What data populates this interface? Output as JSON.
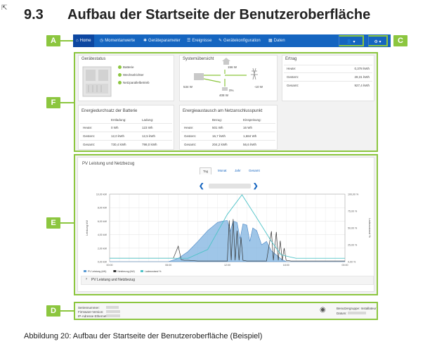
{
  "heading": {
    "number": "9.3",
    "title": "Aufbau der Startseite der Benutzeroberfläche"
  },
  "callouts": {
    "a": "A",
    "b": "B",
    "c": "C",
    "d": "D",
    "e": "E",
    "f": "F"
  },
  "navbar": {
    "items": [
      {
        "label": "Home",
        "icon": "home-icon"
      },
      {
        "label": "Momentanwerte",
        "icon": "clock-icon"
      },
      {
        "label": "Geräteparameter",
        "icon": "gear-icon"
      },
      {
        "label": "Ereignisse",
        "icon": "list-icon"
      },
      {
        "label": "Gerätekonfiguration",
        "icon": "wrench-icon"
      },
      {
        "label": "Daten",
        "icon": "table-icon"
      }
    ],
    "user_menu": "👤 ▾",
    "settings_menu": "⚙ ▾"
  },
  "geraetestatus": {
    "title": "Gerätestatus",
    "items": [
      "Batterie",
      "Wechselrichter",
      "Netzparallelbetrieb"
    ]
  },
  "systemuebersicht": {
    "title": "Systemübersicht",
    "values": {
      "top": "156 W",
      "left": "534 W",
      "right": "-10 W",
      "battery_pct": "0%",
      "bottom": "408 W"
    }
  },
  "ertrag": {
    "title": "Ertrag",
    "rows": [
      [
        "Heute:",
        "0,378 kWh"
      ],
      [
        "Gestern:",
        "28,31 kWh"
      ],
      [
        "Gesamt:",
        "927,4 kWh"
      ]
    ]
  },
  "batterie": {
    "title": "Energiedurchsatz der Batterie",
    "headers": [
      "Entladung:",
      "Ladung:"
    ],
    "rows": [
      [
        "Heute:",
        "0 Wh",
        "123 Wh"
      ],
      [
        "Gestern:",
        "12,0 kWh",
        "12,5 kWh"
      ],
      [
        "Gesamt:",
        "730,4 kWh",
        "798,0 kWh"
      ]
    ]
  },
  "netz": {
    "title": "Energieaustausch am Netzanschlusspunkt",
    "headers": [
      "Bezug:",
      "Einspeisung:"
    ],
    "rows": [
      [
        "Heute:",
        "501 Wh",
        "16 Wh"
      ],
      [
        "Gestern:",
        "16,7 kWh",
        "1,684 Wh"
      ],
      [
        "Gesamt:",
        "204,2 kWh",
        "56,6 kWh"
      ]
    ]
  },
  "chart_panel": {
    "title": "PV Leistung und Netzbezug",
    "tabs": [
      "Tag",
      "Monat",
      "Jahr",
      "Gesamt"
    ],
    "footer_label": "PV Leistung und Netzbezug",
    "nav_prev": "❮",
    "nav_next": "❯"
  },
  "chart_data": {
    "type": "line",
    "title": "",
    "ylabel": "Leistung kW",
    "y2label": "Ladezustand %",
    "x_ticks": [
      "00:00",
      "06:00",
      "12:00",
      "18:00",
      "00:00"
    ],
    "y_ticks": [
      "0,00 kW",
      "2,00 kW",
      "4,00 kW",
      "6,00 kW",
      "8,00 kW",
      "10,00 kW"
    ],
    "y2_ticks": [
      "0,00 %",
      "25,00 %",
      "50,00 %",
      "75,00 %",
      "100,00 %"
    ],
    "ylim": [
      0,
      10
    ],
    "y2lim": [
      0,
      100
    ],
    "xlim": [
      0,
      24
    ],
    "series": [
      {
        "name": "PV Leistung (kW)",
        "color": "#5b9bd5",
        "x": [
          0,
          6,
          7,
          8,
          9,
          10,
          10.5,
          11,
          11.5,
          12,
          12.3,
          12.6,
          13,
          13.3,
          13.6,
          14,
          14.3,
          14.6,
          15,
          15.5,
          16,
          16.5,
          17,
          17.5,
          18,
          24
        ],
        "y": [
          0,
          0,
          0.5,
          1.5,
          3.0,
          4.6,
          5.2,
          5.8,
          6.0,
          6.1,
          4.5,
          6.0,
          5.8,
          3.4,
          5.6,
          5.4,
          3.0,
          5.0,
          4.6,
          2.5,
          3.0,
          1.6,
          1.0,
          0.4,
          0,
          0
        ]
      },
      {
        "name": "Netzbezug (kW)",
        "color": "#333333",
        "x": [
          0,
          6,
          6.5,
          7,
          7.3,
          7.6,
          8,
          9,
          10,
          12,
          12.2,
          12.4,
          12.6,
          12.8,
          13,
          13.2,
          13.4,
          13.6,
          14,
          16,
          16.5,
          16.7,
          17,
          17.2,
          17.4,
          17.6,
          17.8,
          18,
          18.5,
          24
        ],
        "y": [
          0.5,
          0.5,
          0.5,
          2.3,
          0.3,
          0.2,
          0.2,
          0.1,
          0.1,
          0.1,
          6.1,
          0.2,
          6.3,
          0.2,
          4.6,
          0.2,
          3.6,
          0.2,
          0.1,
          0.1,
          4.5,
          0.2,
          4.4,
          0.2,
          3.1,
          0.2,
          2.0,
          0.2,
          0.1,
          0.1
        ]
      },
      {
        "name": "Ladezustand %",
        "color": "#4fc3c8",
        "axis": "y2",
        "x": [
          0,
          6,
          8,
          10,
          12,
          13.5,
          15,
          16.5,
          17.5,
          19,
          24
        ],
        "y": [
          5,
          5,
          5,
          18,
          70,
          99,
          65,
          30,
          10,
          5,
          5
        ]
      }
    ]
  },
  "info_bar": {
    "labels": [
      "Seriennummer:",
      "Firmware-Version:",
      "IP-Adresse Ethernet:"
    ],
    "right_labels": [
      "Benutzergruppe: Installateur",
      "Datum:"
    ]
  },
  "caption": "Abbildung 20: Aufbau der Startseite der Benutzeroberfläche (Beispiel)"
}
